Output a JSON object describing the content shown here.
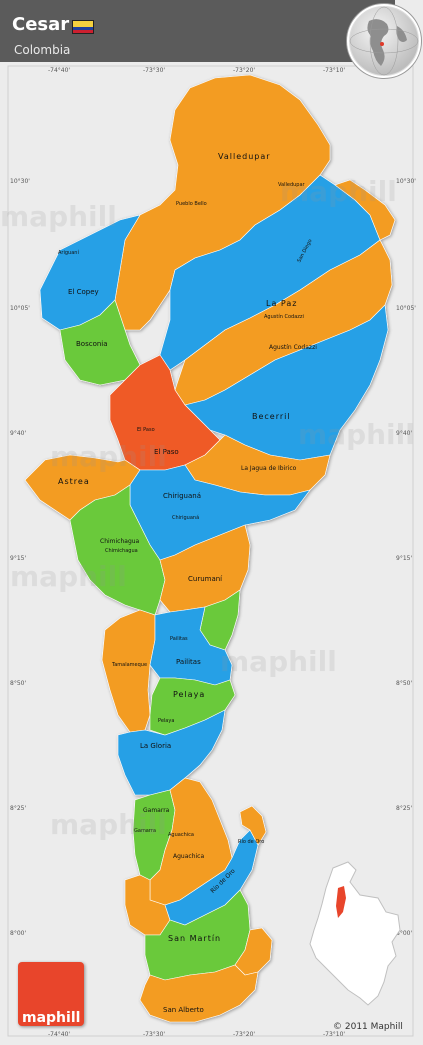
{
  "header": {
    "title": "Cesar",
    "subtitle": "Colombia",
    "flag_colors": [
      "#f4d03f",
      "#1f3f9c",
      "#cc1f2f"
    ]
  },
  "colors": {
    "orange": "#f39c23",
    "blue": "#26a0e6",
    "green": "#6bc93a",
    "red": "#ef5a28",
    "background": "#ececec",
    "header": "#5b5b5b"
  },
  "coordinates": {
    "top": [
      "-74°40'",
      "-73°30'",
      "-73°20'",
      "-73°10'"
    ],
    "bottom": [
      "-74°40'",
      "-73°30'",
      "-73°20'",
      "-73°10'"
    ],
    "left": [
      "10°30'",
      "10°05'",
      "9°40'",
      "9°15'",
      "8°50'",
      "8°25'",
      "8°00'"
    ],
    "right": [
      "10°30'",
      "10°05'",
      "9°40'",
      "9°15'",
      "8°50'",
      "8°25'",
      "8°00'"
    ]
  },
  "regions": {
    "valledupar": "Valledupar",
    "pueblo_bello": "Pueblo Bello",
    "valledupar_city": "Valledupar",
    "san_diego": "San Diego",
    "aristobulo": "Ariguaní",
    "el_copey": "El Copey",
    "la_paz": "La Paz",
    "agustin_codazzi_town": "Agustín Codazzi",
    "bosconia": "Bosconia",
    "agustin_codazzi": "Agustín Codazzi",
    "el_paso_town": "El Paso",
    "becerril": "Becerril",
    "el_paso": "El Paso",
    "la_jagua": "La Jagua de Ibirico",
    "astrea": "Astrea",
    "chiriguana": "Chiriguaná",
    "chiriguana_town": "Chiriguaná",
    "chimichagua": "Chimichagua",
    "chimichagua_town": "Chimichagua",
    "curumani": "Curumaní",
    "pailitas_town": "Pailitas",
    "pailitas": "Pailitas",
    "tamalameque": "Tamalameque",
    "pelaya": "Pelaya",
    "pelaya_town": "Pelaya",
    "la_gloria": "La Gloria",
    "gamarra": "Gamarra",
    "gamarra_town": "Gamarra",
    "aguachica_town": "Aguachica",
    "aguachica": "Aguachica",
    "rio_de_oro_town": "Río de Oro",
    "rio_de_oro": "Río de Oro",
    "san_martin": "San Martín",
    "san_alberto": "San Alberto"
  },
  "watermark": "maphill",
  "logo_text": "maphill",
  "copyright": "© 2011 Maphill"
}
